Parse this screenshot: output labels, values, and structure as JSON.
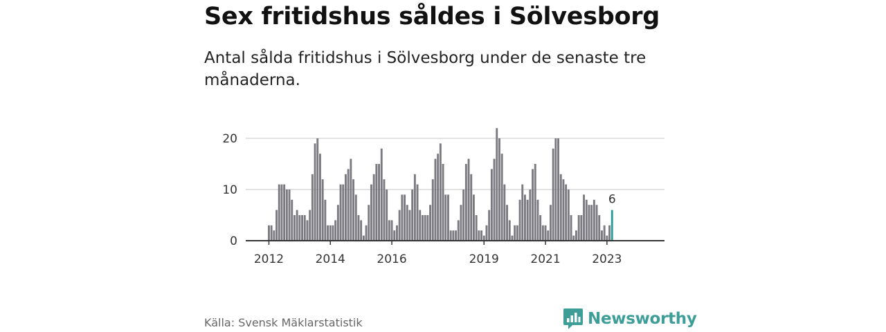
{
  "header": {
    "title": "Sex fritidshus såldes i Sölvesborg",
    "subtitle": "Antal sålda fritidshus i Sölvesborg under de senaste tre månaderna."
  },
  "footer": {
    "source": "Källa: Svensk Mäklarstatistik",
    "brand": "Newsworthy"
  },
  "colors": {
    "bar": "#7b7a80",
    "highlight": "#2a9d98",
    "grid": "#d9d9d9",
    "axis": "#333333",
    "brand": "#3d9e98"
  },
  "icons": {
    "brand": "newsworthy-logo-icon"
  },
  "chart_data": {
    "type": "bar",
    "xlabel": "",
    "ylabel": "",
    "ylim": [
      0,
      20
    ],
    "yticks": [
      0,
      10,
      20
    ],
    "xtick_labels": [
      "2012",
      "2014",
      "2016",
      "2019",
      "2021",
      "2023"
    ],
    "xtick_years": [
      2012,
      2014,
      2016,
      2019,
      2021,
      2023
    ],
    "first_period": "2012-01",
    "grid": true,
    "highlight_label": "6",
    "values": [
      3,
      3,
      2,
      6,
      11,
      11,
      11,
      10,
      10,
      8,
      5,
      6,
      5,
      5,
      5,
      4,
      6,
      13,
      19,
      20,
      17,
      12,
      8,
      3,
      3,
      3,
      4,
      7,
      11,
      11,
      13,
      14,
      16,
      12,
      9,
      5,
      4,
      1,
      3,
      7,
      11,
      13,
      15,
      15,
      18,
      12,
      10,
      4,
      4,
      2,
      3,
      6,
      9,
      9,
      7,
      6,
      10,
      13,
      11,
      6,
      5,
      5,
      5,
      7,
      12,
      16,
      17,
      19,
      15,
      9,
      9,
      2,
      2,
      2,
      4,
      7,
      10,
      15,
      16,
      13,
      9,
      5,
      2,
      2,
      1,
      3,
      6,
      14,
      16,
      22,
      20,
      17,
      11,
      7,
      4,
      1,
      3,
      3,
      8,
      11,
      9,
      8,
      10,
      14,
      15,
      8,
      5,
      3,
      3,
      2,
      7,
      18,
      20,
      20,
      13,
      12,
      11,
      10,
      5,
      1,
      2,
      5,
      5,
      9,
      8,
      7,
      7,
      8,
      7,
      5,
      2,
      3,
      1,
      3,
      6
    ]
  }
}
